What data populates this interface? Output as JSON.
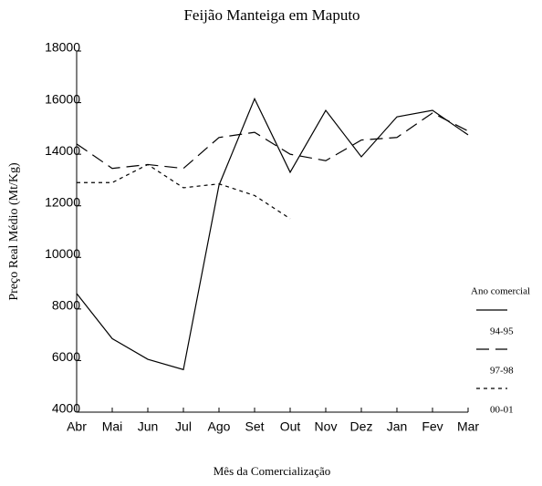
{
  "chart_data": {
    "type": "line",
    "title": "Feijão Manteiga em Maputo",
    "x_label": "Mês da Comercialização",
    "y_label": "Preço Real Médio (Mt/Kg)",
    "legend_title": "Ano comercial",
    "legend": "right",
    "categories": [
      "Abr",
      "Mai",
      "Jun",
      "Jul",
      "Ago",
      "Set",
      "Out",
      "Nov",
      "Dez",
      "Jan",
      "Fev",
      "Mar"
    ],
    "series": [
      {
        "name": "94-95",
        "color": "#000000",
        "dash": "solid",
        "values": [
          8600,
          6850,
          6050,
          5650,
          12800,
          16150,
          13300,
          15700,
          13900,
          15450,
          15700,
          14750
        ]
      },
      {
        "name": "97-98",
        "color": "#000000",
        "dash": "dashed",
        "values": [
          14400,
          13450,
          13600,
          13450,
          14650,
          14850,
          14000,
          13750,
          14550,
          14650,
          15600,
          14900
        ]
      },
      {
        "name": "00-01",
        "color": "#000000",
        "dash": "dotted",
        "values": [
          12900,
          12900,
          13600,
          12700,
          12850,
          12400,
          11500,
          null,
          null,
          null,
          null,
          null
        ]
      }
    ],
    "ylim": [
      4000,
      18000
    ],
    "yticks": [
      4000,
      6000,
      8000,
      10000,
      12000,
      14000,
      16000,
      18000
    ],
    "grid": false
  }
}
